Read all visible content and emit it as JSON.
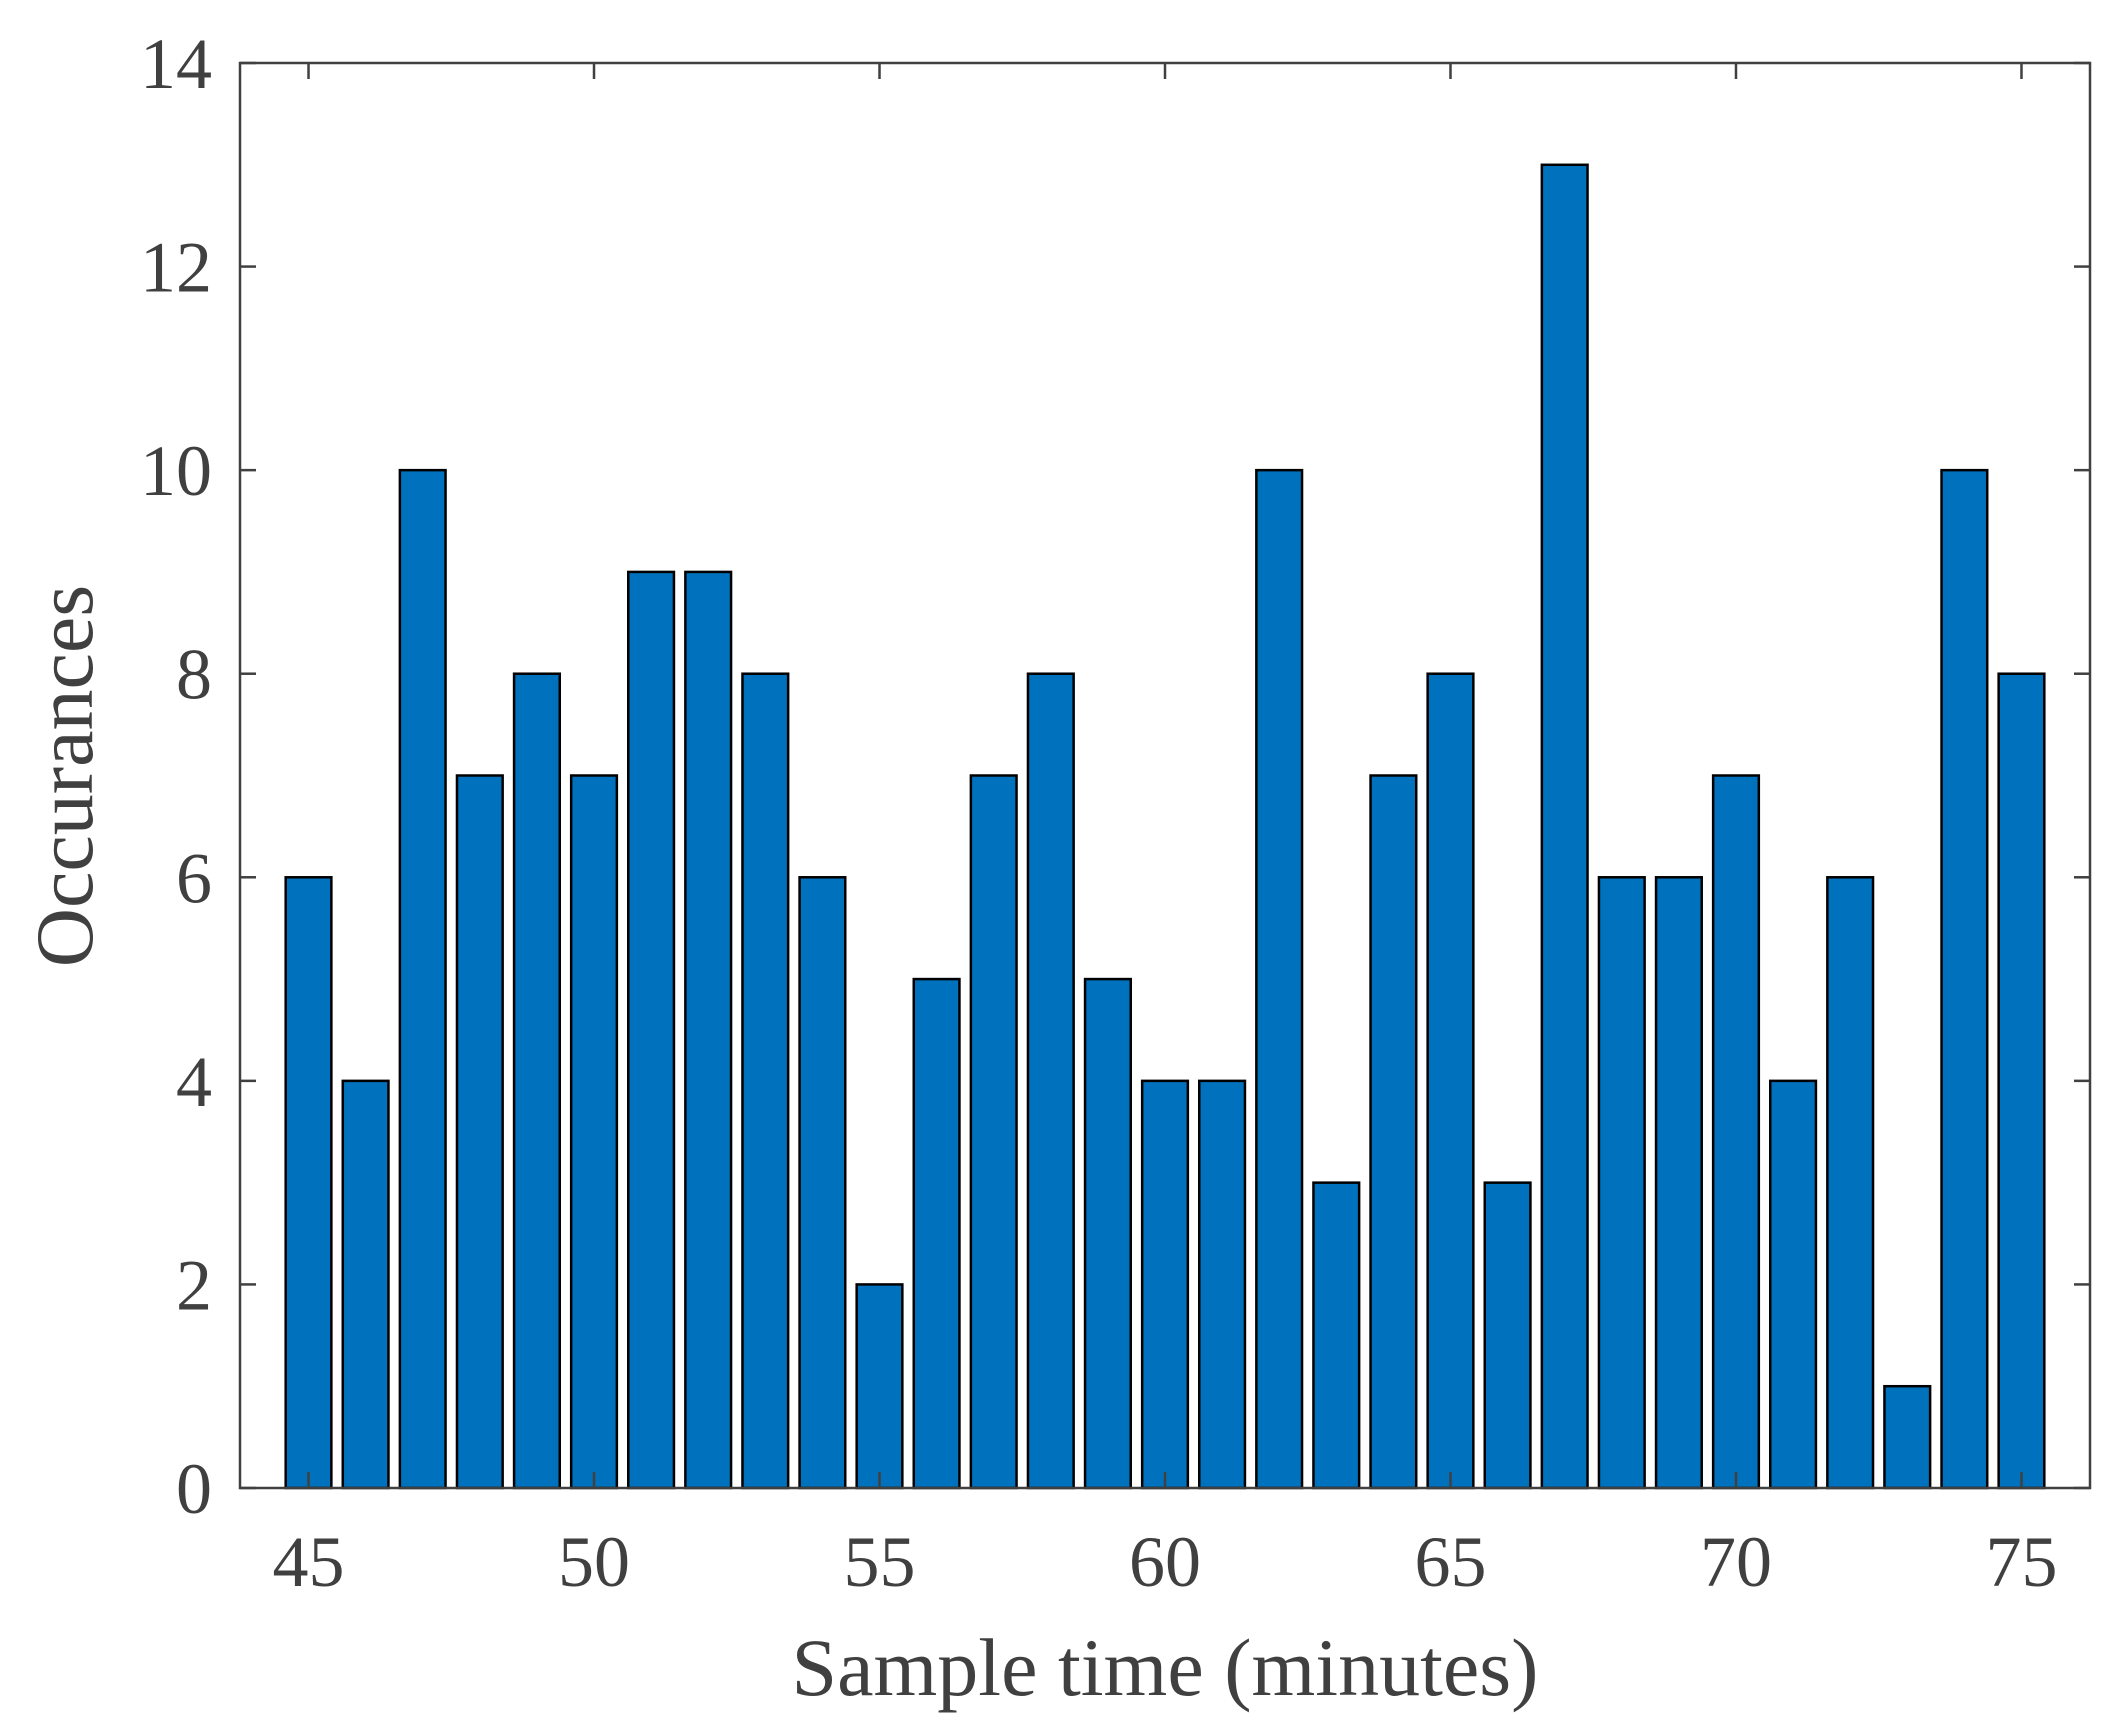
{
  "chart_data": {
    "type": "bar",
    "title": "",
    "xlabel": "Sample time (minutes)",
    "ylabel": "Occurances",
    "x": [
      45,
      46,
      47,
      48,
      49,
      50,
      51,
      52,
      53,
      54,
      55,
      56,
      57,
      58,
      59,
      60,
      61,
      62,
      63,
      64,
      65,
      66,
      67,
      68,
      69,
      70,
      71,
      72,
      73,
      74,
      75
    ],
    "values": [
      6,
      4,
      10,
      7,
      8,
      7,
      9,
      9,
      8,
      6,
      2,
      5,
      7,
      8,
      5,
      4,
      4,
      10,
      3,
      7,
      8,
      3,
      13,
      6,
      6,
      7,
      4,
      6,
      1,
      10,
      8
    ],
    "xlim": [
      43.8,
      76.2
    ],
    "ylim": [
      0,
      14
    ],
    "xticks": [
      45,
      50,
      55,
      60,
      65,
      70,
      75
    ],
    "yticks": [
      0,
      2,
      4,
      6,
      8,
      10,
      12,
      14
    ],
    "bar_width": 0.8,
    "grid": false,
    "colors": {
      "bar": "#0072BD",
      "edge": "#000000",
      "axis": "#404040",
      "background": "#ffffff"
    }
  }
}
